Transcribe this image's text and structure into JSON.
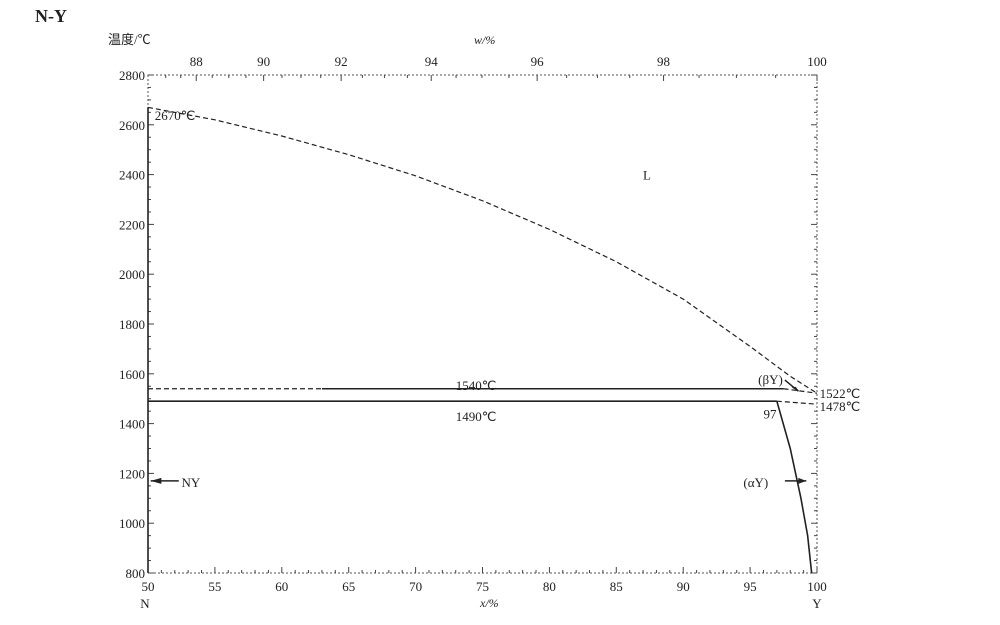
{
  "chart_data": {
    "type": "line",
    "title": "N-Y",
    "ylabel": "温度/℃",
    "xlabel": "x/%",
    "x2label": "w/%",
    "ylim": [
      800,
      2800
    ],
    "xlim": [
      50,
      100
    ],
    "yticks": [
      800,
      1000,
      1200,
      1400,
      1600,
      1800,
      2000,
      2200,
      2400,
      2600,
      2800
    ],
    "xticks": [
      50,
      55,
      60,
      65,
      70,
      75,
      80,
      85,
      90,
      95,
      100
    ],
    "x2ticks": [
      88,
      90,
      92,
      94,
      96,
      98,
      100
    ],
    "end_labels": {
      "left": "N",
      "right": "Y"
    },
    "series": [
      {
        "style": "dashed",
        "points": [
          [
            50,
            2670
          ],
          [
            55,
            2620
          ],
          [
            60,
            2555
          ],
          [
            65,
            2480
          ],
          [
            70,
            2395
          ],
          [
            75,
            2295
          ],
          [
            80,
            2180
          ],
          [
            85,
            2050
          ],
          [
            90,
            1900
          ],
          [
            95,
            1710
          ],
          [
            98,
            1590
          ],
          [
            100,
            1522
          ]
        ]
      },
      {
        "style": "solid",
        "points": [
          [
            50,
            800
          ],
          [
            50,
            2670
          ]
        ]
      },
      {
        "style": "dashed",
        "points": [
          [
            50,
            1540
          ],
          [
            63,
            1540
          ]
        ]
      },
      {
        "style": "solid",
        "points": [
          [
            63,
            1540
          ],
          [
            97.5,
            1540
          ]
        ]
      },
      {
        "style": "dashed",
        "points": [
          [
            97.5,
            1540
          ],
          [
            100,
            1522
          ]
        ]
      },
      {
        "style": "solid",
        "points": [
          [
            50,
            1490
          ],
          [
            97,
            1490
          ]
        ]
      },
      {
        "style": "dashed",
        "points": [
          [
            97,
            1490
          ],
          [
            100,
            1478
          ]
        ]
      },
      {
        "style": "solid",
        "points": [
          [
            97,
            1490
          ],
          [
            98,
            1300
          ],
          [
            98.8,
            1100
          ],
          [
            99.3,
            950
          ],
          [
            99.6,
            800
          ]
        ]
      }
    ],
    "annotations": [
      {
        "text": "2670℃",
        "x": 50.5,
        "y": 2640
      },
      {
        "text": "L",
        "x": 87,
        "y": 2400
      },
      {
        "text": "1540℃",
        "x": 73,
        "y": 1555
      },
      {
        "text": "1490℃",
        "x": 73,
        "y": 1430
      },
      {
        "text": "(βY)",
        "x": 95.6,
        "y": 1580
      },
      {
        "text": "1522℃",
        "x": 100.2,
        "y": 1522
      },
      {
        "text": "1478℃",
        "x": 100.2,
        "y": 1470
      },
      {
        "text": "97",
        "x": 96,
        "y": 1440
      },
      {
        "text": "NY",
        "x": 52.5,
        "y": 1165
      },
      {
        "text": "(αY)",
        "x": 94.5,
        "y": 1165
      }
    ],
    "grid": false
  }
}
